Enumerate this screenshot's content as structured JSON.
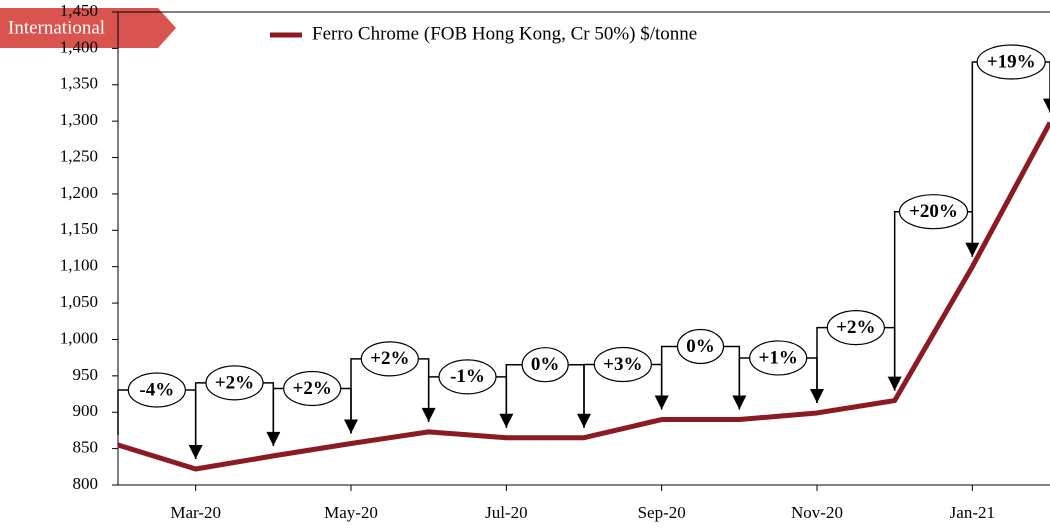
{
  "chart_data": {
    "type": "line",
    "legend": "Ferro Chrome (FOB Hong Kong, Cr 50%) $/tonne",
    "tag": "International",
    "categories": [
      null,
      "Mar-20",
      null,
      "May-20",
      null,
      "Jul-20",
      null,
      "Sep-20",
      null,
      "Nov-20",
      null,
      "Jan-21",
      null
    ],
    "series": [
      {
        "name": "Ferro Chrome (FOB Hong Kong, Cr 50%) $/tonne",
        "color": "#8b1a22",
        "values": [
          855,
          822,
          840,
          857,
          873,
          865,
          865,
          890,
          890,
          899,
          916,
          1100,
          1298
        ]
      }
    ],
    "annotations": [
      "-4%",
      "+2%",
      "+2%",
      "+2%",
      "-1%",
      "0%",
      "+3%",
      "0%",
      "+1%",
      "+2%",
      "+20%",
      "+19%"
    ],
    "ylim": [
      800,
      1450
    ],
    "yticks": [
      800,
      850,
      900,
      950,
      {
        "value": 1000,
        "label": "1,000"
      },
      {
        "value": 1050,
        "label": "1,050"
      },
      {
        "value": 1100,
        "label": "1,100"
      },
      {
        "value": 1150,
        "label": "1,150"
      },
      {
        "value": 1200,
        "label": "1,200"
      },
      {
        "value": 1250,
        "label": "1,250"
      },
      {
        "value": 1300,
        "label": "1,300"
      },
      {
        "value": 1350,
        "label": "1,350"
      },
      {
        "value": 1400,
        "label": "1,400"
      },
      {
        "value": 1450,
        "label": "1,450"
      }
    ]
  }
}
